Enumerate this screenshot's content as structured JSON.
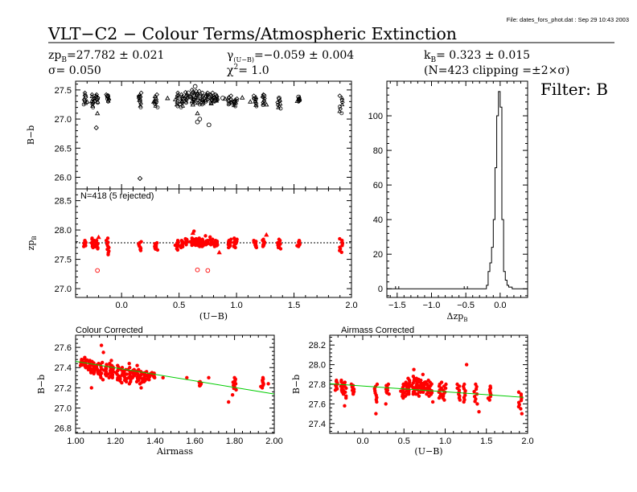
{
  "header": {
    "file_note": "File: dates_fors_phot.dat : Sep 29 10:43 2003",
    "title": "VLT−C2  −  Colour Terms/Atmospheric Extinction",
    "zp": "zp",
    "zp_sub": "B",
    "zp_value": "=27.782 ± 0.021",
    "gamma": "γ",
    "gamma_sub": "(U−B)",
    "gamma_value": "=−0.059 ± 0.004",
    "k": "k",
    "k_sub": "B",
    "k_value": "=  0.323 ± 0.015",
    "sigma": "σ=  0.050",
    "chi": "χ",
    "chi_sup": "2",
    "chi_value": "=   1.0",
    "clip_note": "(N=423 clipping =±2×σ)",
    "filter": "Filter: B"
  },
  "colors": {
    "points_red": "#ff0000",
    "fit_line": "#00cc00",
    "axes": "#000000"
  },
  "chart_data": [
    {
      "id": "raw",
      "type": "scatter",
      "xlabel": "",
      "ylabel": "B−b",
      "xlim": [
        -0.4,
        2.0
      ],
      "ylim": [
        25.8,
        27.65
      ],
      "xticks": [
        0.0,
        0.5,
        1.0,
        1.5,
        2.0
      ],
      "yticks": [
        26.0,
        26.5,
        27.0,
        27.5
      ],
      "ytick_labels": [
        "26.0",
        "26.5",
        "27.0",
        "27.5"
      ],
      "annotation": "",
      "points_triangle": [
        [
          -0.25,
          27.3
        ],
        [
          -0.21,
          27.1
        ],
        [
          -0.3,
          27.3
        ],
        [
          0.16,
          27.35
        ],
        [
          0.28,
          27.3
        ],
        [
          0.4,
          27.36
        ],
        [
          0.52,
          27.3
        ],
        [
          0.62,
          27.25
        ],
        [
          0.66,
          27.1
        ],
        [
          0.7,
          27.33
        ],
        [
          0.78,
          27.27
        ],
        [
          0.9,
          27.35
        ],
        [
          0.96,
          27.3
        ],
        [
          1.05,
          27.37
        ],
        [
          1.12,
          27.3
        ],
        [
          1.26,
          27.25
        ]
      ],
      "points_circle": [
        [
          -0.21,
          27.35
        ],
        [
          -0.12,
          27.4
        ],
        [
          0.16,
          27.38
        ],
        [
          0.3,
          27.3
        ],
        [
          0.5,
          27.36
        ],
        [
          0.54,
          27.35
        ],
        [
          0.58,
          27.45
        ],
        [
          0.6,
          27.38
        ],
        [
          0.64,
          27.56
        ],
        [
          0.66,
          26.95
        ],
        [
          0.68,
          27.0
        ],
        [
          0.76,
          26.9
        ],
        [
          0.82,
          27.33
        ],
        [
          0.88,
          27.36
        ],
        [
          0.98,
          27.3
        ],
        [
          1.16,
          27.35
        ],
        [
          1.24,
          27.4
        ],
        [
          1.37,
          27.36
        ],
        [
          1.54,
          27.38
        ]
      ],
      "points_diamond": [
        [
          -0.22,
          26.85
        ],
        [
          0.16,
          25.98
        ],
        [
          0.16,
          27.38
        ]
      ],
      "columns": [
        [
          -0.32,
          27.25,
          27.45
        ],
        [
          -0.25,
          27.2,
          27.42
        ],
        [
          -0.22,
          27.28,
          27.42
        ],
        [
          -0.12,
          27.3,
          27.42
        ],
        [
          0.16,
          27.2,
          27.45
        ],
        [
          0.3,
          27.2,
          27.42
        ],
        [
          0.48,
          27.22,
          27.45
        ],
        [
          0.52,
          27.2,
          27.42
        ],
        [
          0.57,
          27.28,
          27.46
        ],
        [
          0.61,
          27.28,
          27.5
        ],
        [
          0.64,
          27.28,
          27.48
        ],
        [
          0.67,
          27.25,
          27.48
        ],
        [
          0.7,
          27.25,
          27.45
        ],
        [
          0.74,
          27.3,
          27.45
        ],
        [
          0.78,
          27.28,
          27.45
        ],
        [
          0.82,
          27.3,
          27.42
        ],
        [
          0.94,
          27.25,
          27.4
        ],
        [
          0.99,
          27.22,
          27.35
        ],
        [
          1.16,
          27.22,
          27.4
        ],
        [
          1.24,
          27.24,
          27.42
        ],
        [
          1.37,
          27.18,
          27.35
        ],
        [
          1.54,
          27.3,
          27.36
        ],
        [
          1.91,
          27.1,
          27.4
        ]
      ]
    },
    {
      "id": "zp",
      "type": "scatter",
      "xlabel": "(U−B)",
      "ylabel": "zp",
      "ylabel_sub": "B",
      "xlim": [
        -0.4,
        2.0
      ],
      "ylim": [
        26.85,
        28.7
      ],
      "xticks": [
        0.0,
        0.5,
        1.0,
        1.5,
        2.0
      ],
      "xtick_labels": [
        "0.0",
        "0.5",
        "1.0",
        "1.5",
        "2.0"
      ],
      "yticks": [
        27.0,
        27.5,
        28.0,
        28.5
      ],
      "ytick_labels": [
        "27.0",
        "27.5",
        "28.0",
        "28.5"
      ],
      "annotation": "N=418 (5 rejected)",
      "reference_y": 27.782,
      "points_circle": [
        [
          -0.21,
          27.31
        ],
        [
          0.66,
          27.32
        ],
        [
          0.75,
          27.31
        ]
      ],
      "points_triangle": [
        [
          -0.2,
          27.88
        ],
        [
          0.62,
          27.95
        ],
        [
          1.26,
          27.92
        ],
        [
          0.85,
          27.62
        ]
      ],
      "points_dot": [
        [
          0.63,
          27.98
        ],
        [
          0.73,
          27.9
        ],
        [
          0.77,
          27.88
        ],
        [
          0.98,
          27.86
        ],
        [
          -0.12,
          27.86
        ]
      ],
      "columns": [
        [
          -0.32,
          27.72,
          27.82
        ],
        [
          -0.25,
          27.7,
          27.86
        ],
        [
          -0.22,
          27.68,
          27.82
        ],
        [
          -0.12,
          27.58,
          27.82
        ],
        [
          0.16,
          27.65,
          27.8
        ],
        [
          0.3,
          27.66,
          27.78
        ],
        [
          0.48,
          27.66,
          27.82
        ],
        [
          0.52,
          27.7,
          27.82
        ],
        [
          0.57,
          27.75,
          27.85
        ],
        [
          0.61,
          27.74,
          27.86
        ],
        [
          0.64,
          27.74,
          27.85
        ],
        [
          0.67,
          27.72,
          27.86
        ],
        [
          0.7,
          27.72,
          27.84
        ],
        [
          0.74,
          27.75,
          27.82
        ],
        [
          0.78,
          27.75,
          27.84
        ],
        [
          0.82,
          27.72,
          27.82
        ],
        [
          0.94,
          27.7,
          27.84
        ],
        [
          0.99,
          27.7,
          27.84
        ],
        [
          1.16,
          27.7,
          27.82
        ],
        [
          1.24,
          27.72,
          27.84
        ],
        [
          1.37,
          27.68,
          27.84
        ],
        [
          1.54,
          27.72,
          27.82
        ],
        [
          1.91,
          27.62,
          27.85
        ]
      ]
    },
    {
      "id": "hist",
      "type": "bar",
      "xlabel": "Δzp",
      "xlabel_sub": "B",
      "ylabel": "",
      "xlim": [
        -1.65,
        0.4
      ],
      "ylim": [
        -5,
        120
      ],
      "xticks": [
        -1.5,
        -1.0,
        -0.5,
        0.0
      ],
      "xtick_labels": [
        "−1.5",
        "−1.0",
        "−0.5",
        "0.0"
      ],
      "yticks": [
        0,
        20,
        40,
        60,
        80,
        100
      ],
      "ytick_labels": [
        "0",
        "20",
        "40",
        "60",
        "80",
        "100"
      ],
      "bin_edges": [
        -0.2,
        -0.175,
        -0.15,
        -0.125,
        -0.1,
        -0.075,
        -0.05,
        -0.025,
        0.0,
        0.025,
        0.05,
        0.075,
        0.1,
        0.125,
        0.15,
        0.175
      ],
      "counts": [
        2,
        10,
        15,
        24,
        40,
        70,
        100,
        114,
        105,
        40,
        10,
        5,
        2,
        1,
        1
      ],
      "outliers_x": [
        -1.5,
        -0.5
      ]
    },
    {
      "id": "colour_corr",
      "type": "scatter",
      "title": "Colour Corrected",
      "xlabel": "Airmass",
      "ylabel": "B−b",
      "xlim": [
        1.0,
        2.0
      ],
      "ylim": [
        26.75,
        27.72
      ],
      "xticks": [
        1.0,
        1.2,
        1.4,
        1.6,
        1.8,
        2.0
      ],
      "xtick_labels": [
        "1.00",
        "1.20",
        "1.40",
        "1.60",
        "1.80",
        "2.00"
      ],
      "yticks": [
        26.8,
        27.0,
        27.2,
        27.4,
        27.6
      ],
      "ytick_labels": [
        "26.8",
        "27.0",
        "27.2",
        "27.4",
        "27.6"
      ],
      "fit": {
        "x": [
          1.0,
          2.0
        ],
        "y": [
          27.462,
          27.139
        ]
      },
      "columns": [
        [
          1.03,
          27.42,
          27.48
        ],
        [
          1.05,
          27.4,
          27.5
        ],
        [
          1.07,
          27.35,
          27.47
        ],
        [
          1.09,
          27.34,
          27.46
        ],
        [
          1.11,
          27.34,
          27.44
        ],
        [
          1.13,
          27.28,
          27.45
        ],
        [
          1.15,
          27.32,
          27.43
        ],
        [
          1.17,
          27.3,
          27.44
        ],
        [
          1.19,
          27.3,
          27.42
        ],
        [
          1.21,
          27.28,
          27.42
        ],
        [
          1.23,
          27.25,
          27.4
        ],
        [
          1.25,
          27.26,
          27.38
        ],
        [
          1.27,
          27.24,
          27.4
        ],
        [
          1.29,
          27.3,
          27.38
        ],
        [
          1.31,
          27.26,
          27.38
        ],
        [
          1.33,
          27.24,
          27.36
        ],
        [
          1.35,
          27.26,
          27.36
        ],
        [
          1.37,
          27.28,
          27.34
        ],
        [
          1.39,
          27.3,
          27.35
        ],
        [
          1.63,
          27.22,
          27.26
        ],
        [
          1.8,
          27.18,
          27.3
        ],
        [
          1.94,
          27.2,
          27.3
        ]
      ],
      "points_dot": [
        [
          1.13,
          27.62
        ],
        [
          1.14,
          27.55
        ],
        [
          1.31,
          27.42
        ],
        [
          1.18,
          27.47
        ],
        [
          1.27,
          27.44
        ],
        [
          1.44,
          27.3
        ],
        [
          1.56,
          27.3
        ],
        [
          1.67,
          27.3
        ],
        [
          1.77,
          27.06
        ],
        [
          1.79,
          27.13
        ],
        [
          1.97,
          27.24
        ],
        [
          1.33,
          27.2
        ],
        [
          1.08,
          27.2
        ]
      ]
    },
    {
      "id": "airmass_corr",
      "type": "scatter",
      "title": "Airmass Corrected",
      "xlabel": "(U−B)",
      "ylabel": "B−b",
      "xlim": [
        -0.4,
        2.0
      ],
      "ylim": [
        27.3,
        28.3
      ],
      "xticks": [
        0.0,
        0.5,
        1.0,
        1.5,
        2.0
      ],
      "xtick_labels": [
        "0.0",
        "0.5",
        "1.0",
        "1.5",
        "2.0"
      ],
      "yticks": [
        27.4,
        27.6,
        27.8,
        28.0,
        28.2
      ],
      "ytick_labels": [
        "27.4",
        "27.6",
        "27.8",
        "28.0",
        "28.2"
      ],
      "fit": {
        "x": [
          -0.4,
          1.95
        ],
        "y": [
          27.806,
          27.667
        ]
      },
      "columns": [
        [
          -0.32,
          27.74,
          27.84
        ],
        [
          -0.25,
          27.72,
          27.84
        ],
        [
          -0.22,
          27.66,
          27.82
        ],
        [
          -0.12,
          27.7,
          27.8
        ],
        [
          0.16,
          27.62,
          27.8
        ],
        [
          0.3,
          27.7,
          27.8
        ],
        [
          0.48,
          27.66,
          27.8
        ],
        [
          0.52,
          27.68,
          27.82
        ],
        [
          0.57,
          27.7,
          27.86
        ],
        [
          0.61,
          27.7,
          27.88
        ],
        [
          0.64,
          27.7,
          27.86
        ],
        [
          0.67,
          27.68,
          27.85
        ],
        [
          0.7,
          27.72,
          27.84
        ],
        [
          0.74,
          27.72,
          27.82
        ],
        [
          0.78,
          27.7,
          27.84
        ],
        [
          0.82,
          27.68,
          27.82
        ],
        [
          0.94,
          27.66,
          27.82
        ],
        [
          0.99,
          27.64,
          27.8
        ],
        [
          1.16,
          27.64,
          27.8
        ],
        [
          1.24,
          27.62,
          27.8
        ],
        [
          1.37,
          27.6,
          27.8
        ],
        [
          1.54,
          27.64,
          27.78
        ],
        [
          1.91,
          27.55,
          27.72
        ]
      ],
      "points_dot": [
        [
          -0.22,
          27.58
        ],
        [
          0.16,
          27.5
        ],
        [
          0.28,
          27.6
        ],
        [
          0.62,
          27.95
        ],
        [
          0.73,
          27.9
        ],
        [
          1.26,
          28.0
        ],
        [
          0.85,
          27.62
        ],
        [
          1.41,
          27.52
        ],
        [
          1.93,
          27.5
        ]
      ]
    }
  ]
}
